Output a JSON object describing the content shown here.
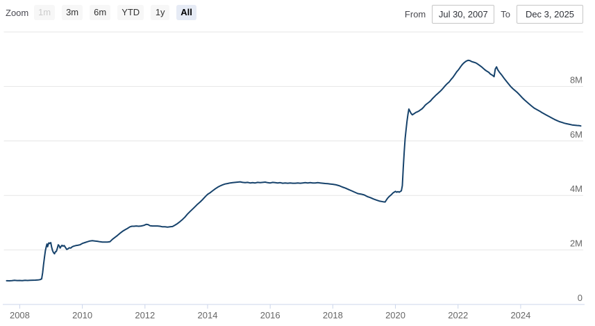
{
  "range_selector": {
    "zoom_label": "Zoom",
    "buttons": [
      {
        "label": "1m",
        "state": "disabled"
      },
      {
        "label": "3m",
        "state": "normal"
      },
      {
        "label": "6m",
        "state": "normal"
      },
      {
        "label": "YTD",
        "state": "normal"
      },
      {
        "label": "1y",
        "state": "normal"
      },
      {
        "label": "All",
        "state": "selected"
      }
    ],
    "from_label": "From",
    "from_value": "Jul 30, 2007",
    "to_label": "To",
    "to_value": "Dec 3, 2025"
  },
  "colors": {
    "line": "#16426b",
    "grid": "#e6e6e6",
    "axis_line": "#ccd6eb",
    "tick": "#ccd6eb",
    "axis_label": "#666666",
    "button_bg": "#f7f7f7",
    "button_selected_bg": "#e6ebf5",
    "button_disabled_text": "#cccccc"
  },
  "chart_data": {
    "type": "line",
    "title": "",
    "xlabel": "",
    "ylabel": "",
    "legend": "none",
    "grid": "horizontal",
    "y_axis_side": "right",
    "x_range": [
      2007.58,
      2025.92
    ],
    "ylim": [
      0,
      10
    ],
    "x_ticks": [
      2008,
      2010,
      2012,
      2014,
      2016,
      2018,
      2020,
      2022,
      2024
    ],
    "y_gridlines": [
      2,
      4,
      6,
      8,
      10
    ],
    "y_tick_labels": [
      {
        "value": 0,
        "label": "0"
      },
      {
        "value": 2,
        "label": "2M"
      },
      {
        "value": 4,
        "label": "4M"
      },
      {
        "value": 6,
        "label": "6M"
      },
      {
        "value": 8,
        "label": "8M"
      }
    ],
    "series": [
      {
        "points": [
          [
            2007.58,
            0.87
          ],
          [
            2007.67,
            0.868
          ],
          [
            2007.75,
            0.873
          ],
          [
            2007.83,
            0.885
          ],
          [
            2007.92,
            0.878
          ],
          [
            2008.0,
            0.88
          ],
          [
            2008.08,
            0.873
          ],
          [
            2008.17,
            0.885
          ],
          [
            2008.25,
            0.879
          ],
          [
            2008.33,
            0.886
          ],
          [
            2008.42,
            0.89
          ],
          [
            2008.5,
            0.894
          ],
          [
            2008.58,
            0.898
          ],
          [
            2008.65,
            0.91
          ],
          [
            2008.7,
            0.94
          ],
          [
            2008.73,
            1.16
          ],
          [
            2008.76,
            1.46
          ],
          [
            2008.79,
            1.74
          ],
          [
            2008.82,
            1.98
          ],
          [
            2008.85,
            2.14
          ],
          [
            2008.87,
            2.22
          ],
          [
            2008.89,
            2.12
          ],
          [
            2008.91,
            2.2
          ],
          [
            2008.93,
            2.26
          ],
          [
            2008.96,
            2.24
          ],
          [
            2008.99,
            2.27
          ],
          [
            2009.02,
            2.1
          ],
          [
            2009.05,
            1.97
          ],
          [
            2009.08,
            1.9
          ],
          [
            2009.11,
            1.86
          ],
          [
            2009.14,
            1.93
          ],
          [
            2009.17,
            1.95
          ],
          [
            2009.2,
            2.06
          ],
          [
            2009.23,
            2.19
          ],
          [
            2009.26,
            2.15
          ],
          [
            2009.29,
            2.07
          ],
          [
            2009.32,
            2.13
          ],
          [
            2009.35,
            2.17
          ],
          [
            2009.38,
            2.14
          ],
          [
            2009.42,
            2.16
          ],
          [
            2009.46,
            2.09
          ],
          [
            2009.5,
            2.02
          ],
          [
            2009.54,
            2.04
          ],
          [
            2009.58,
            2.08
          ],
          [
            2009.63,
            2.07
          ],
          [
            2009.68,
            2.12
          ],
          [
            2009.73,
            2.14
          ],
          [
            2009.79,
            2.16
          ],
          [
            2009.85,
            2.17
          ],
          [
            2009.92,
            2.19
          ],
          [
            2010.0,
            2.24
          ],
          [
            2010.08,
            2.27
          ],
          [
            2010.16,
            2.3
          ],
          [
            2010.24,
            2.33
          ],
          [
            2010.32,
            2.34
          ],
          [
            2010.4,
            2.33
          ],
          [
            2010.48,
            2.32
          ],
          [
            2010.56,
            2.3
          ],
          [
            2010.64,
            2.29
          ],
          [
            2010.72,
            2.29
          ],
          [
            2010.8,
            2.29
          ],
          [
            2010.88,
            2.3
          ],
          [
            2010.96,
            2.39
          ],
          [
            2011.04,
            2.46
          ],
          [
            2011.12,
            2.53
          ],
          [
            2011.2,
            2.61
          ],
          [
            2011.28,
            2.68
          ],
          [
            2011.36,
            2.74
          ],
          [
            2011.44,
            2.79
          ],
          [
            2011.52,
            2.85
          ],
          [
            2011.58,
            2.87
          ],
          [
            2011.65,
            2.87
          ],
          [
            2011.72,
            2.88
          ],
          [
            2011.8,
            2.87
          ],
          [
            2011.88,
            2.88
          ],
          [
            2011.96,
            2.9
          ],
          [
            2012.04,
            2.94
          ],
          [
            2012.1,
            2.93
          ],
          [
            2012.16,
            2.89
          ],
          [
            2012.24,
            2.88
          ],
          [
            2012.32,
            2.88
          ],
          [
            2012.4,
            2.88
          ],
          [
            2012.48,
            2.87
          ],
          [
            2012.56,
            2.85
          ],
          [
            2012.64,
            2.85
          ],
          [
            2012.72,
            2.84
          ],
          [
            2012.8,
            2.85
          ],
          [
            2012.88,
            2.86
          ],
          [
            2012.96,
            2.91
          ],
          [
            2013.04,
            2.97
          ],
          [
            2013.12,
            3.04
          ],
          [
            2013.2,
            3.12
          ],
          [
            2013.28,
            3.21
          ],
          [
            2013.36,
            3.32
          ],
          [
            2013.44,
            3.41
          ],
          [
            2013.52,
            3.5
          ],
          [
            2013.6,
            3.59
          ],
          [
            2013.68,
            3.68
          ],
          [
            2013.76,
            3.76
          ],
          [
            2013.84,
            3.85
          ],
          [
            2013.92,
            3.95
          ],
          [
            2014.0,
            4.04
          ],
          [
            2014.08,
            4.1
          ],
          [
            2014.16,
            4.17
          ],
          [
            2014.24,
            4.24
          ],
          [
            2014.32,
            4.3
          ],
          [
            2014.4,
            4.35
          ],
          [
            2014.48,
            4.39
          ],
          [
            2014.56,
            4.42
          ],
          [
            2014.64,
            4.44
          ],
          [
            2014.72,
            4.46
          ],
          [
            2014.8,
            4.47
          ],
          [
            2014.88,
            4.48
          ],
          [
            2014.96,
            4.49
          ],
          [
            2015.04,
            4.5
          ],
          [
            2015.12,
            4.48
          ],
          [
            2015.2,
            4.47
          ],
          [
            2015.28,
            4.48
          ],
          [
            2015.36,
            4.46
          ],
          [
            2015.44,
            4.47
          ],
          [
            2015.52,
            4.46
          ],
          [
            2015.6,
            4.48
          ],
          [
            2015.68,
            4.47
          ],
          [
            2015.76,
            4.48
          ],
          [
            2015.84,
            4.49
          ],
          [
            2015.92,
            4.47
          ],
          [
            2016.0,
            4.46
          ],
          [
            2016.08,
            4.48
          ],
          [
            2016.16,
            4.47
          ],
          [
            2016.24,
            4.46
          ],
          [
            2016.32,
            4.47
          ],
          [
            2016.4,
            4.45
          ],
          [
            2016.48,
            4.46
          ],
          [
            2016.56,
            4.45
          ],
          [
            2016.64,
            4.46
          ],
          [
            2016.72,
            4.45
          ],
          [
            2016.8,
            4.45
          ],
          [
            2016.88,
            4.46
          ],
          [
            2016.96,
            4.45
          ],
          [
            2017.04,
            4.46
          ],
          [
            2017.12,
            4.47
          ],
          [
            2017.2,
            4.46
          ],
          [
            2017.28,
            4.47
          ],
          [
            2017.36,
            4.46
          ],
          [
            2017.44,
            4.46
          ],
          [
            2017.52,
            4.47
          ],
          [
            2017.6,
            4.46
          ],
          [
            2017.68,
            4.45
          ],
          [
            2017.76,
            4.44
          ],
          [
            2017.84,
            4.43
          ],
          [
            2017.92,
            4.42
          ],
          [
            2018.0,
            4.41
          ],
          [
            2018.1,
            4.39
          ],
          [
            2018.2,
            4.36
          ],
          [
            2018.3,
            4.31
          ],
          [
            2018.4,
            4.27
          ],
          [
            2018.5,
            4.22
          ],
          [
            2018.6,
            4.17
          ],
          [
            2018.7,
            4.12
          ],
          [
            2018.8,
            4.07
          ],
          [
            2018.9,
            4.05
          ],
          [
            2019.0,
            4.02
          ],
          [
            2019.1,
            3.96
          ],
          [
            2019.2,
            3.92
          ],
          [
            2019.3,
            3.87
          ],
          [
            2019.4,
            3.83
          ],
          [
            2019.5,
            3.79
          ],
          [
            2019.6,
            3.77
          ],
          [
            2019.67,
            3.76
          ],
          [
            2019.72,
            3.85
          ],
          [
            2019.76,
            3.91
          ],
          [
            2019.8,
            3.96
          ],
          [
            2019.84,
            4.0
          ],
          [
            2019.88,
            4.04
          ],
          [
            2019.92,
            4.09
          ],
          [
            2019.96,
            4.12
          ],
          [
            2020.0,
            4.15
          ],
          [
            2020.04,
            4.12
          ],
          [
            2020.08,
            4.14
          ],
          [
            2020.12,
            4.12
          ],
          [
            2020.16,
            4.15
          ],
          [
            2020.19,
            4.17
          ],
          [
            2020.22,
            4.36
          ],
          [
            2020.25,
            5.0
          ],
          [
            2020.28,
            5.6
          ],
          [
            2020.31,
            6.08
          ],
          [
            2020.34,
            6.42
          ],
          [
            2020.37,
            6.72
          ],
          [
            2020.4,
            6.98
          ],
          [
            2020.43,
            7.17
          ],
          [
            2020.46,
            7.1
          ],
          [
            2020.5,
            7.01
          ],
          [
            2020.54,
            6.96
          ],
          [
            2020.58,
            6.99
          ],
          [
            2020.62,
            7.02
          ],
          [
            2020.66,
            7.05
          ],
          [
            2020.7,
            7.07
          ],
          [
            2020.75,
            7.1
          ],
          [
            2020.8,
            7.14
          ],
          [
            2020.85,
            7.18
          ],
          [
            2020.9,
            7.24
          ],
          [
            2020.95,
            7.31
          ],
          [
            2021.0,
            7.36
          ],
          [
            2021.06,
            7.41
          ],
          [
            2021.12,
            7.47
          ],
          [
            2021.18,
            7.55
          ],
          [
            2021.24,
            7.62
          ],
          [
            2021.3,
            7.69
          ],
          [
            2021.36,
            7.75
          ],
          [
            2021.42,
            7.81
          ],
          [
            2021.48,
            7.88
          ],
          [
            2021.54,
            7.96
          ],
          [
            2021.6,
            8.04
          ],
          [
            2021.66,
            8.11
          ],
          [
            2021.72,
            8.17
          ],
          [
            2021.78,
            8.26
          ],
          [
            2021.84,
            8.34
          ],
          [
            2021.9,
            8.44
          ],
          [
            2021.96,
            8.54
          ],
          [
            2022.02,
            8.62
          ],
          [
            2022.08,
            8.72
          ],
          [
            2022.14,
            8.81
          ],
          [
            2022.2,
            8.88
          ],
          [
            2022.26,
            8.93
          ],
          [
            2022.32,
            8.96
          ],
          [
            2022.38,
            8.95
          ],
          [
            2022.44,
            8.91
          ],
          [
            2022.5,
            8.89
          ],
          [
            2022.56,
            8.87
          ],
          [
            2022.62,
            8.83
          ],
          [
            2022.68,
            8.78
          ],
          [
            2022.74,
            8.73
          ],
          [
            2022.8,
            8.67
          ],
          [
            2022.86,
            8.61
          ],
          [
            2022.92,
            8.56
          ],
          [
            2022.98,
            8.52
          ],
          [
            2023.04,
            8.45
          ],
          [
            2023.1,
            8.41
          ],
          [
            2023.15,
            8.36
          ],
          [
            2023.19,
            8.64
          ],
          [
            2023.23,
            8.72
          ],
          [
            2023.27,
            8.61
          ],
          [
            2023.33,
            8.51
          ],
          [
            2023.4,
            8.41
          ],
          [
            2023.47,
            8.3
          ],
          [
            2023.54,
            8.2
          ],
          [
            2023.61,
            8.1
          ],
          [
            2023.68,
            8.0
          ],
          [
            2023.75,
            7.92
          ],
          [
            2023.82,
            7.85
          ],
          [
            2023.89,
            7.78
          ],
          [
            2023.96,
            7.7
          ],
          [
            2024.04,
            7.6
          ],
          [
            2024.12,
            7.51
          ],
          [
            2024.2,
            7.43
          ],
          [
            2024.28,
            7.35
          ],
          [
            2024.36,
            7.27
          ],
          [
            2024.44,
            7.2
          ],
          [
            2024.52,
            7.15
          ],
          [
            2024.6,
            7.1
          ],
          [
            2024.68,
            7.04
          ],
          [
            2024.76,
            6.99
          ],
          [
            2024.84,
            6.94
          ],
          [
            2024.92,
            6.89
          ],
          [
            2025.0,
            6.84
          ],
          [
            2025.08,
            6.79
          ],
          [
            2025.16,
            6.75
          ],
          [
            2025.24,
            6.71
          ],
          [
            2025.32,
            6.68
          ],
          [
            2025.4,
            6.65
          ],
          [
            2025.48,
            6.63
          ],
          [
            2025.56,
            6.61
          ],
          [
            2025.64,
            6.59
          ],
          [
            2025.72,
            6.58
          ],
          [
            2025.8,
            6.57
          ],
          [
            2025.88,
            6.56
          ],
          [
            2025.92,
            6.55
          ]
        ]
      }
    ]
  }
}
